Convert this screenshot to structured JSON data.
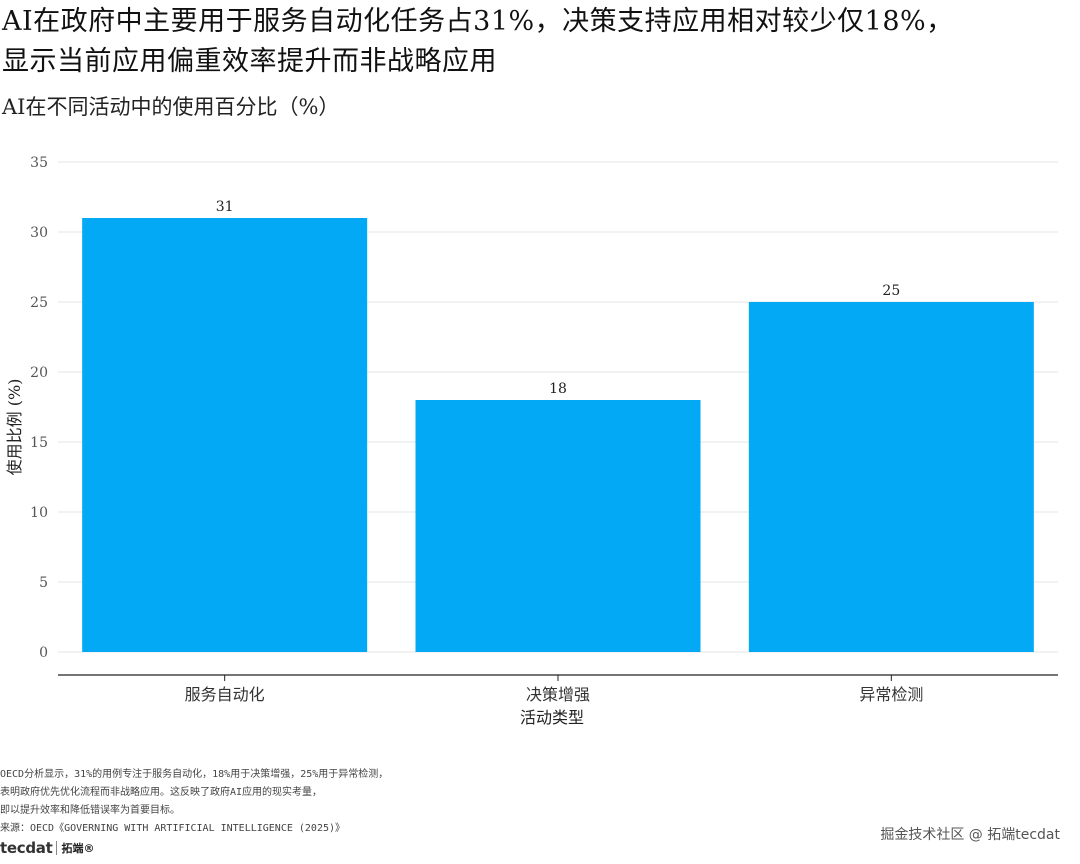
{
  "title_line1": "AI在政府中主要用于服务自动化任务占31%，决策支持应用相对较少仅18%，",
  "title_line2": "显示当前应用偏重效率提升而非战略应用",
  "subtitle": "AI在不同活动中的使用百分比（%）",
  "notes": [
    "OECD分析显示，31%的用例专注于服务自动化，18%用于决策增强，25%用于异常检测，",
    "表明政府优先优化流程而非战略应用。这反映了政府AI应用的现实考量，",
    "即以提升效率和降低错误率为首要目标。",
    "来源：OECD《GOVERNING WITH ARTIFICIAL INTELLIGENCE (2025)》"
  ],
  "logo": {
    "mark": "tecdat",
    "brand": "拓端®"
  },
  "watermark": "掘金技术社区 @ 拓端tecdat",
  "colors": {
    "bar": "#03A9F4",
    "grid": "#e6e6e6",
    "axis": "#222222"
  },
  "chart_data": {
    "type": "bar",
    "title": "AI在政府中主要用于服务自动化任务占31%，决策支持应用相对较少仅18%，显示当前应用偏重效率提升而非战略应用",
    "subtitle": "AI在不同活动中的使用百分比（%）",
    "xlabel": "活动类型",
    "ylabel": "使用比例 (%)",
    "categories": [
      "服务自动化",
      "决策增强",
      "异常检测"
    ],
    "values": [
      31,
      18,
      25
    ],
    "data_labels": [
      "31",
      "18",
      "25"
    ],
    "ylim": [
      0,
      35
    ],
    "yticks": [
      0,
      5,
      10,
      15,
      20,
      25,
      30,
      35
    ],
    "grid": true,
    "legend": "none"
  }
}
